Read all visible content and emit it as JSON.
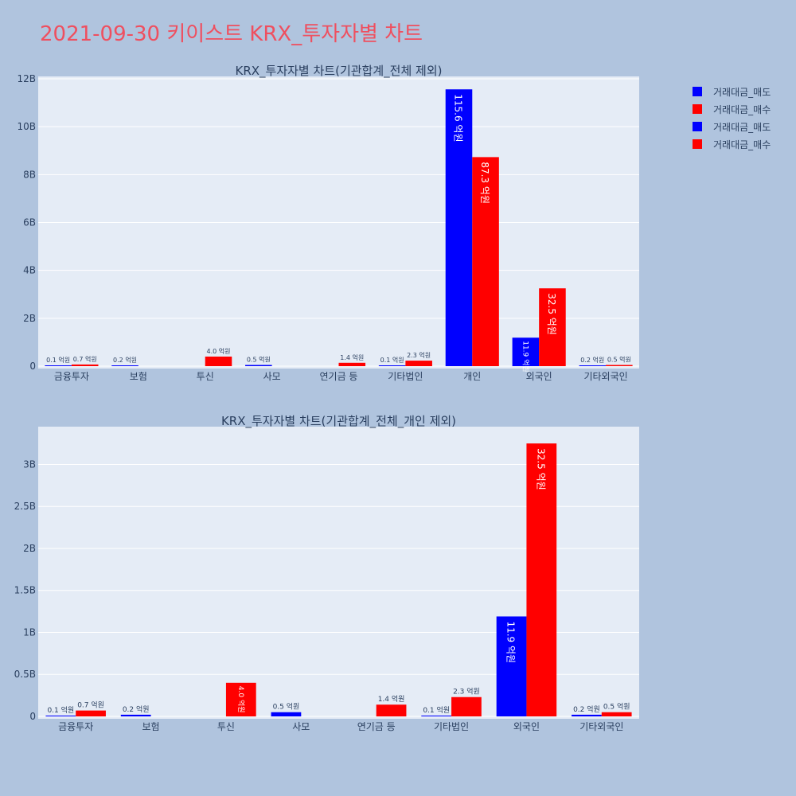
{
  "page": {
    "title": "2021-09-30 키이스트 KRX_투자자별 차트"
  },
  "colors": {
    "background": "#b0c4de",
    "plot_background": "#e5ecf6",
    "title": "#ef4f5f",
    "sell": "#0000ff",
    "buy": "#ff0000",
    "text": "#2a3f5f"
  },
  "legend": {
    "placement": "top-right",
    "items": [
      {
        "label": "거래대금_매도",
        "color": "#0000ff"
      },
      {
        "label": "거래대금_매수",
        "color": "#ff0000"
      },
      {
        "label": "거래대금_매도",
        "color": "#0000ff"
      },
      {
        "label": "거래대금_매수",
        "color": "#ff0000"
      }
    ]
  },
  "chart_data": [
    {
      "type": "bar",
      "title": "KRX_투자자별 차트(기관합계_전체 제외)",
      "categories": [
        "금융투자",
        "보험",
        "투신",
        "사모",
        "연기금 등",
        "기타법인",
        "개인",
        "외국인",
        "기타외국인"
      ],
      "ylim": [
        0,
        12.1
      ],
      "yticks": [
        0,
        2,
        4,
        6,
        8,
        10,
        12
      ],
      "ytick_labels": [
        "0",
        "2B",
        "4B",
        "6B",
        "8B",
        "10B",
        "12B"
      ],
      "grid": true,
      "series": [
        {
          "name": "거래대금_매도",
          "color": "#0000ff",
          "values": [
            0.01,
            0.02,
            null,
            0.05,
            null,
            0.01,
            11.56,
            1.19,
            0.02
          ],
          "labels": [
            "0.1 억원",
            "0.2 억원",
            "",
            "0.5 억원",
            "",
            "0.1 억원",
            "115.6 억원",
            "11.9 억원",
            "0.2 억원"
          ]
        },
        {
          "name": "거래대금_매수",
          "color": "#ff0000",
          "values": [
            0.07,
            null,
            0.4,
            null,
            0.14,
            0.23,
            8.73,
            3.25,
            0.05
          ],
          "labels": [
            "0.7 억원",
            "",
            "4.0 억원",
            "",
            "1.4 억원",
            "2.3 억원",
            "87.3 억원",
            "32.5 억원",
            "0.5 억원"
          ]
        }
      ]
    },
    {
      "type": "bar",
      "title": "KRX_투자자별 차트(기관합계_전체_개인 제외)",
      "categories": [
        "금융투자",
        "보험",
        "투신",
        "사모",
        "연기금 등",
        "기타법인",
        "외국인",
        "기타외국인"
      ],
      "ylim": [
        0,
        3.45
      ],
      "yticks": [
        0,
        0.5,
        1,
        1.5,
        2,
        2.5,
        3
      ],
      "ytick_labels": [
        "0",
        "0.5B",
        "1B",
        "1.5B",
        "2B",
        "2.5B",
        "3B"
      ],
      "grid": true,
      "series": [
        {
          "name": "거래대금_매도",
          "color": "#0000ff",
          "values": [
            0.01,
            0.02,
            null,
            0.05,
            null,
            0.01,
            1.19,
            0.02
          ],
          "labels": [
            "0.1 억원",
            "0.2 억원",
            "",
            "0.5 억원",
            "",
            "0.1 억원",
            "11.9 억원",
            "0.2 억원"
          ]
        },
        {
          "name": "거래대금_매수",
          "color": "#ff0000",
          "values": [
            0.07,
            null,
            0.4,
            null,
            0.14,
            0.23,
            3.25,
            0.05
          ],
          "labels": [
            "0.7 억원",
            "",
            "4.0 억원",
            "",
            "1.4 억원",
            "2.3 억원",
            "32.5 억원",
            "0.5 억원"
          ]
        }
      ]
    }
  ]
}
